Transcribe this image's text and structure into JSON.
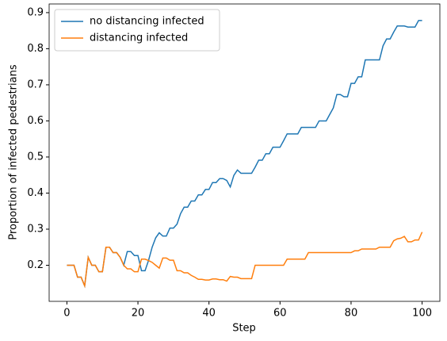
{
  "chart_data": {
    "type": "line",
    "x_label": "Step",
    "y_label": "Proportion of infected pedestrians",
    "x": [
      0,
      1,
      2,
      3,
      4,
      5,
      6,
      7,
      8,
      9,
      10,
      11,
      12,
      13,
      14,
      15,
      16,
      17,
      18,
      19,
      20,
      21,
      22,
      23,
      24,
      25,
      26,
      27,
      28,
      29,
      30,
      31,
      32,
      33,
      34,
      35,
      36,
      37,
      38,
      39,
      40,
      41,
      42,
      43,
      44,
      45,
      46,
      47,
      48,
      49,
      50,
      51,
      52,
      53,
      54,
      55,
      56,
      57,
      58,
      59,
      60,
      61,
      62,
      63,
      64,
      65,
      66,
      67,
      68,
      69,
      70,
      71,
      72,
      73,
      74,
      75,
      76,
      77,
      78,
      79,
      80,
      81,
      82,
      83,
      84,
      85,
      86,
      87,
      88,
      89,
      90,
      91,
      92,
      93,
      94,
      95,
      96,
      97,
      98,
      99,
      100
    ],
    "series": [
      {
        "name": "no distancing infected",
        "color": "#1f77b4",
        "values": [
          0.2,
          0.2,
          0.2,
          0.167,
          0.167,
          0.143,
          0.222,
          0.2,
          0.2,
          0.182,
          0.182,
          0.25,
          0.25,
          0.235,
          0.235,
          0.222,
          0.2,
          0.238,
          0.238,
          0.227,
          0.227,
          0.185,
          0.185,
          0.214,
          0.25,
          0.276,
          0.29,
          0.281,
          0.281,
          0.303,
          0.303,
          0.314,
          0.343,
          0.361,
          0.361,
          0.378,
          0.378,
          0.395,
          0.395,
          0.41,
          0.41,
          0.429,
          0.429,
          0.44,
          0.44,
          0.435,
          0.417,
          0.449,
          0.464,
          0.455,
          0.455,
          0.455,
          0.455,
          0.472,
          0.491,
          0.491,
          0.509,
          0.509,
          0.527,
          0.527,
          0.527,
          0.545,
          0.564,
          0.564,
          0.564,
          0.564,
          0.582,
          0.582,
          0.582,
          0.582,
          0.582,
          0.6,
          0.6,
          0.6,
          0.618,
          0.636,
          0.673,
          0.673,
          0.667,
          0.667,
          0.704,
          0.704,
          0.722,
          0.722,
          0.769,
          0.769,
          0.769,
          0.769,
          0.769,
          0.808,
          0.827,
          0.827,
          0.846,
          0.863,
          0.863,
          0.863,
          0.86,
          0.86,
          0.86,
          0.878,
          0.878
        ]
      },
      {
        "name": "distancing infected",
        "color": "#ff7f0e",
        "values": [
          0.2,
          0.2,
          0.2,
          0.167,
          0.167,
          0.143,
          0.222,
          0.2,
          0.2,
          0.182,
          0.182,
          0.25,
          0.25,
          0.235,
          0.235,
          0.222,
          0.2,
          0.19,
          0.19,
          0.182,
          0.182,
          0.217,
          0.217,
          0.213,
          0.208,
          0.2,
          0.192,
          0.22,
          0.22,
          0.214,
          0.214,
          0.185,
          0.185,
          0.179,
          0.179,
          0.172,
          0.167,
          0.161,
          0.161,
          0.159,
          0.159,
          0.162,
          0.162,
          0.16,
          0.16,
          0.156,
          0.169,
          0.167,
          0.167,
          0.163,
          0.163,
          0.163,
          0.163,
          0.2,
          0.2,
          0.2,
          0.2,
          0.2,
          0.2,
          0.2,
          0.2,
          0.2,
          0.217,
          0.217,
          0.217,
          0.217,
          0.217,
          0.217,
          0.235,
          0.235,
          0.235,
          0.235,
          0.235,
          0.235,
          0.235,
          0.235,
          0.235,
          0.235,
          0.235,
          0.235,
          0.235,
          0.24,
          0.24,
          0.245,
          0.245,
          0.245,
          0.245,
          0.245,
          0.25,
          0.25,
          0.25,
          0.25,
          0.268,
          0.273,
          0.275,
          0.28,
          0.265,
          0.265,
          0.27,
          0.27,
          0.292
        ]
      }
    ],
    "xlim": [
      -5,
      105
    ],
    "ylim": [
      0.1,
      0.924
    ],
    "xticks": [
      0,
      20,
      40,
      60,
      80,
      100
    ],
    "yticks": [
      0.2,
      0.3,
      0.4,
      0.5,
      0.6,
      0.7,
      0.8,
      0.9
    ],
    "legend": "upper left"
  }
}
